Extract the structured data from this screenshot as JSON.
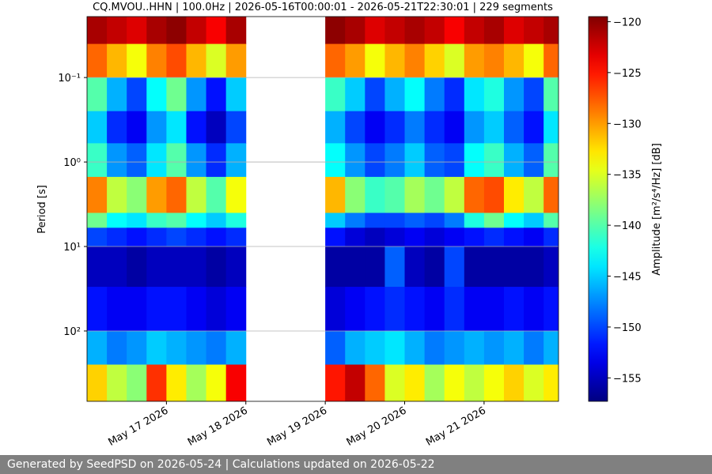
{
  "chart_data": {
    "type": "heatmap",
    "title": "CQ.MVOU..HHN | 100.0Hz | 2026-05-16T00:00:01 - 2026-05-21T22:30:01 | 229 segments",
    "y_label": "Period [s]",
    "colorbar_label": "Amplitude [m²/s⁴/Hz] [dB]",
    "colormap": "jet",
    "log_y": true,
    "invert_y": true,
    "grid": true,
    "xlim": [
      "2026-05-16T00:00:01",
      "2026-05-21T22:30:01"
    ],
    "xticks": [
      {
        "value": "2026-05-17T00:00:00",
        "label": "May 17 2026"
      },
      {
        "value": "2026-05-18T00:00:00",
        "label": "May 18 2026"
      },
      {
        "value": "2026-05-19T00:00:00",
        "label": "May 19 2026"
      },
      {
        "value": "2026-05-20T00:00:00",
        "label": "May 20 2026"
      },
      {
        "value": "2026-05-21T00:00:00",
        "label": "May 21 2026"
      }
    ],
    "ylim": [
      0.019,
      680
    ],
    "yticks": [
      {
        "value": 0.1,
        "label": "10⁻¹"
      },
      {
        "value": 1,
        "label": "10⁰"
      },
      {
        "value": 10,
        "label": "10¹"
      },
      {
        "value": 100,
        "label": "10²"
      }
    ],
    "clim": [
      -157.3,
      -119.5
    ],
    "cticks": [
      {
        "value": -120,
        "label": "−120"
      },
      {
        "value": -125,
        "label": "−125"
      },
      {
        "value": -130,
        "label": "−130"
      },
      {
        "value": -135,
        "label": "−135"
      },
      {
        "value": -140,
        "label": "−140"
      },
      {
        "value": -145,
        "label": "−145"
      },
      {
        "value": -150,
        "label": "−150"
      },
      {
        "value": -155,
        "label": "−155"
      }
    ],
    "x": [
      "2026-05-16T00:00:01",
      "2026-05-16T06:00:00",
      "2026-05-16T12:00:00",
      "2026-05-16T18:00:00",
      "2026-05-17T00:00:00",
      "2026-05-17T06:00:00",
      "2026-05-17T12:00:00",
      "2026-05-17T18:00:00",
      "2026-05-18T00:00:00",
      "2026-05-18T06:00:00",
      "2026-05-18T12:00:00",
      "2026-05-18T18:00:00",
      "2026-05-19T00:00:00",
      "2026-05-19T06:00:00",
      "2026-05-19T12:00:00",
      "2026-05-19T18:00:00",
      "2026-05-20T00:00:00",
      "2026-05-20T06:00:00",
      "2026-05-20T12:00:00",
      "2026-05-20T18:00:00",
      "2026-05-21T00:00:00",
      "2026-05-21T06:00:00",
      "2026-05-21T12:00:00",
      "2026-05-21T18:00:00",
      "2026-05-21T22:30:01"
    ],
    "y": [
      0.019,
      0.04,
      0.1,
      0.25,
      0.6,
      1.5,
      4,
      6,
      10,
      30,
      100,
      250,
      680
    ],
    "values": [
      [
        -121,
        -122,
        -123,
        -121,
        -120,
        -122,
        -124,
        -121,
        null,
        null,
        null,
        null,
        -120,
        -121,
        -123,
        -122,
        -121,
        -122,
        -124,
        -122,
        -121,
        -123,
        -122,
        -121
      ],
      [
        -128,
        -131,
        -134,
        -129,
        -127,
        -131,
        -135,
        -130,
        null,
        null,
        null,
        null,
        -128,
        -130,
        -134,
        -131,
        -129,
        -132,
        -135,
        -130,
        -129,
        -131,
        -134,
        -128
      ],
      [
        -140,
        -146,
        -150,
        -143,
        -139,
        -147,
        -152,
        -145,
        null,
        null,
        null,
        null,
        -141,
        -145,
        -150,
        -146,
        -143,
        -148,
        -151,
        -144,
        -142,
        -147,
        -150,
        -140
      ],
      [
        -145,
        -151,
        -153,
        -147,
        -144,
        -152,
        -155,
        -150,
        null,
        null,
        null,
        null,
        -146,
        -150,
        -153,
        -151,
        -148,
        -151,
        -153,
        -147,
        -145,
        -149,
        -152,
        -144
      ],
      [
        -141,
        -147,
        -149,
        -144,
        -140,
        -147,
        -151,
        -146,
        null,
        null,
        null,
        null,
        -143,
        -147,
        -150,
        -148,
        -145,
        -149,
        -150,
        -143,
        -141,
        -146,
        -149,
        -140
      ],
      [
        -129,
        -136,
        -138,
        -130,
        -128,
        -136,
        -140,
        -134,
        null,
        null,
        null,
        null,
        -131,
        -138,
        -141,
        -140,
        -137,
        -139,
        -136,
        -128,
        -127,
        -133,
        -136,
        -128
      ],
      [
        -139,
        -143,
        -144,
        -141,
        -140,
        -143,
        -145,
        -142,
        null,
        null,
        null,
        null,
        -145,
        -148,
        -150,
        -150,
        -149,
        -150,
        -148,
        -142,
        -139,
        -143,
        -145,
        -140
      ],
      [
        -150,
        -151,
        -152,
        -151,
        -150,
        -151,
        -152,
        -151,
        null,
        null,
        null,
        null,
        -152,
        -154,
        -155,
        -154,
        -153,
        -154,
        -153,
        -152,
        -151,
        -152,
        -153,
        -151
      ],
      [
        -155,
        -155,
        -156,
        -155,
        -155,
        -155,
        -156,
        -155,
        null,
        null,
        null,
        null,
        -156,
        -156,
        -156,
        -149,
        -155,
        -156,
        -150,
        -156,
        -156,
        -156,
        -156,
        -155
      ],
      [
        -152,
        -153,
        -153,
        -152,
        -152,
        -153,
        -154,
        -153,
        null,
        null,
        null,
        null,
        -154,
        -153,
        -152,
        -151,
        -152,
        -153,
        -151,
        -153,
        -153,
        -152,
        -153,
        -152
      ],
      [
        -146,
        -148,
        -147,
        -145,
        -146,
        -147,
        -148,
        -146,
        null,
        null,
        null,
        null,
        -149,
        -146,
        -145,
        -144,
        -146,
        -148,
        -147,
        -146,
        -147,
        -146,
        -148,
        -146
      ],
      [
        -132,
        -136,
        -138,
        -126,
        -133,
        -137,
        -134,
        -124,
        null,
        null,
        null,
        null,
        -125,
        -122,
        -128,
        -135,
        -133,
        -137,
        -134,
        -136,
        -134,
        -132,
        -135,
        -133
      ]
    ]
  },
  "footer": "Generated by SeedPSD on 2026-05-24 | Calculations updated on 2026-05-22"
}
